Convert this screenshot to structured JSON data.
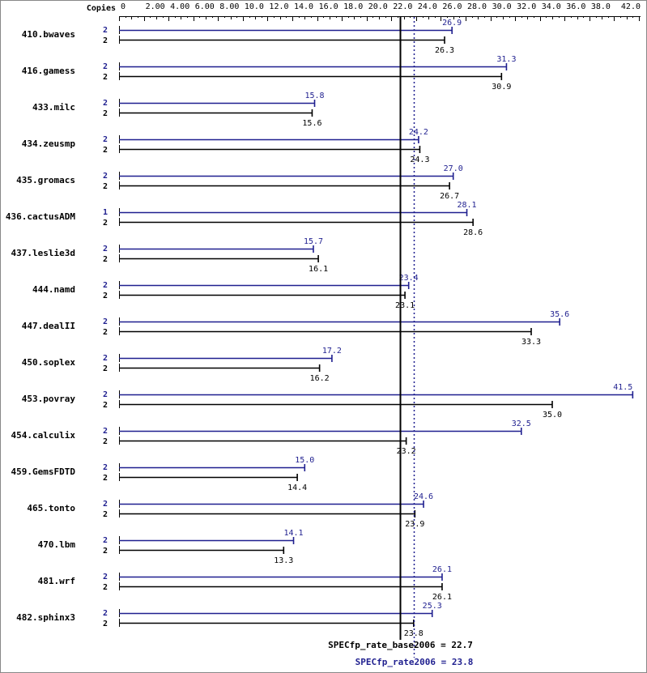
{
  "chart_data": {
    "type": "bar",
    "header_label": "Copies",
    "xlim": [
      0,
      42.0
    ],
    "ticks": [
      "0",
      "2.00",
      "4.00",
      "6.00",
      "8.00",
      "10.0",
      "12.0",
      "14.0",
      "16.0",
      "18.0",
      "20.0",
      "22.0",
      "24.0",
      "26.0",
      "28.0",
      "30.0",
      "32.0",
      "34.0",
      "36.0",
      "38.0",
      "42.0"
    ],
    "tick_values": [
      0,
      2,
      4,
      6,
      8,
      10,
      12,
      14,
      16,
      18,
      20,
      22,
      24,
      26,
      28,
      30,
      32,
      34,
      36,
      38,
      42
    ],
    "colors": {
      "peak": "#1f1f8f",
      "base": "#000000"
    },
    "series": [
      {
        "name": "peak",
        "color": "#1f1f8f"
      },
      {
        "name": "base",
        "color": "#000000"
      }
    ],
    "categories": [
      "410.bwaves",
      "416.gamess",
      "433.milc",
      "434.zeusmp",
      "435.gromacs",
      "436.cactusADM",
      "437.leslie3d",
      "444.namd",
      "447.dealII",
      "450.soplex",
      "453.povray",
      "454.calculix",
      "459.GemsFDTD",
      "465.tonto",
      "470.lbm",
      "481.wrf",
      "482.sphinx3"
    ],
    "benchmarks": [
      {
        "name": "410.bwaves",
        "peak_copies": "2",
        "peak": 26.9,
        "peak_label": "26.9",
        "base_copies": "2",
        "base": 26.3,
        "base_label": "26.3"
      },
      {
        "name": "416.gamess",
        "peak_copies": "2",
        "peak": 31.3,
        "peak_label": "31.3",
        "base_copies": "2",
        "base": 30.9,
        "base_label": "30.9"
      },
      {
        "name": "433.milc",
        "peak_copies": "2",
        "peak": 15.8,
        "peak_label": "15.8",
        "base_copies": "2",
        "base": 15.6,
        "base_label": "15.6"
      },
      {
        "name": "434.zeusmp",
        "peak_copies": "2",
        "peak": 24.2,
        "peak_label": "24.2",
        "base_copies": "2",
        "base": 24.3,
        "base_label": "24.3"
      },
      {
        "name": "435.gromacs",
        "peak_copies": "2",
        "peak": 27.0,
        "peak_label": "27.0",
        "base_copies": "2",
        "base": 26.7,
        "base_label": "26.7"
      },
      {
        "name": "436.cactusADM",
        "peak_copies": "1",
        "peak": 28.1,
        "peak_label": "28.1",
        "base_copies": "2",
        "base": 28.6,
        "base_label": "28.6"
      },
      {
        "name": "437.leslie3d",
        "peak_copies": "2",
        "peak": 15.7,
        "peak_label": "15.7",
        "base_copies": "2",
        "base": 16.1,
        "base_label": "16.1"
      },
      {
        "name": "444.namd",
        "peak_copies": "2",
        "peak": 23.4,
        "peak_label": "23.4",
        "base_copies": "2",
        "base": 23.1,
        "base_label": "23.1"
      },
      {
        "name": "447.dealII",
        "peak_copies": "2",
        "peak": 35.6,
        "peak_label": "35.6",
        "base_copies": "2",
        "base": 33.3,
        "base_label": "33.3"
      },
      {
        "name": "450.soplex",
        "peak_copies": "2",
        "peak": 17.2,
        "peak_label": "17.2",
        "base_copies": "2",
        "base": 16.2,
        "base_label": "16.2"
      },
      {
        "name": "453.povray",
        "peak_copies": "2",
        "peak": 41.5,
        "peak_label": "41.5",
        "base_copies": "2",
        "base": 35.0,
        "base_label": "35.0"
      },
      {
        "name": "454.calculix",
        "peak_copies": "2",
        "peak": 32.5,
        "peak_label": "32.5",
        "base_copies": "2",
        "base": 23.2,
        "base_label": "23.2"
      },
      {
        "name": "459.GemsFDTD",
        "peak_copies": "2",
        "peak": 15.0,
        "peak_label": "15.0",
        "base_copies": "2",
        "base": 14.4,
        "base_label": "14.4"
      },
      {
        "name": "465.tonto",
        "peak_copies": "2",
        "peak": 24.6,
        "peak_label": "24.6",
        "base_copies": "2",
        "base": 23.9,
        "base_label": "23.9"
      },
      {
        "name": "470.lbm",
        "peak_copies": "2",
        "peak": 14.1,
        "peak_label": "14.1",
        "base_copies": "2",
        "base": 13.3,
        "base_label": "13.3"
      },
      {
        "name": "481.wrf",
        "peak_copies": "2",
        "peak": 26.1,
        "peak_label": "26.1",
        "base_copies": "2",
        "base": 26.1,
        "base_label": "26.1"
      },
      {
        "name": "482.sphinx3",
        "peak_copies": "2",
        "peak": 25.3,
        "peak_label": "25.3",
        "base_copies": "2",
        "base": 23.8,
        "base_label": "23.8"
      }
    ],
    "base_metric": {
      "label": "SPECfp_rate_base2006 = 22.7",
      "value": 22.7
    },
    "peak_metric": {
      "label": "SPECfp_rate2006 = 23.8",
      "value": 23.8
    }
  }
}
